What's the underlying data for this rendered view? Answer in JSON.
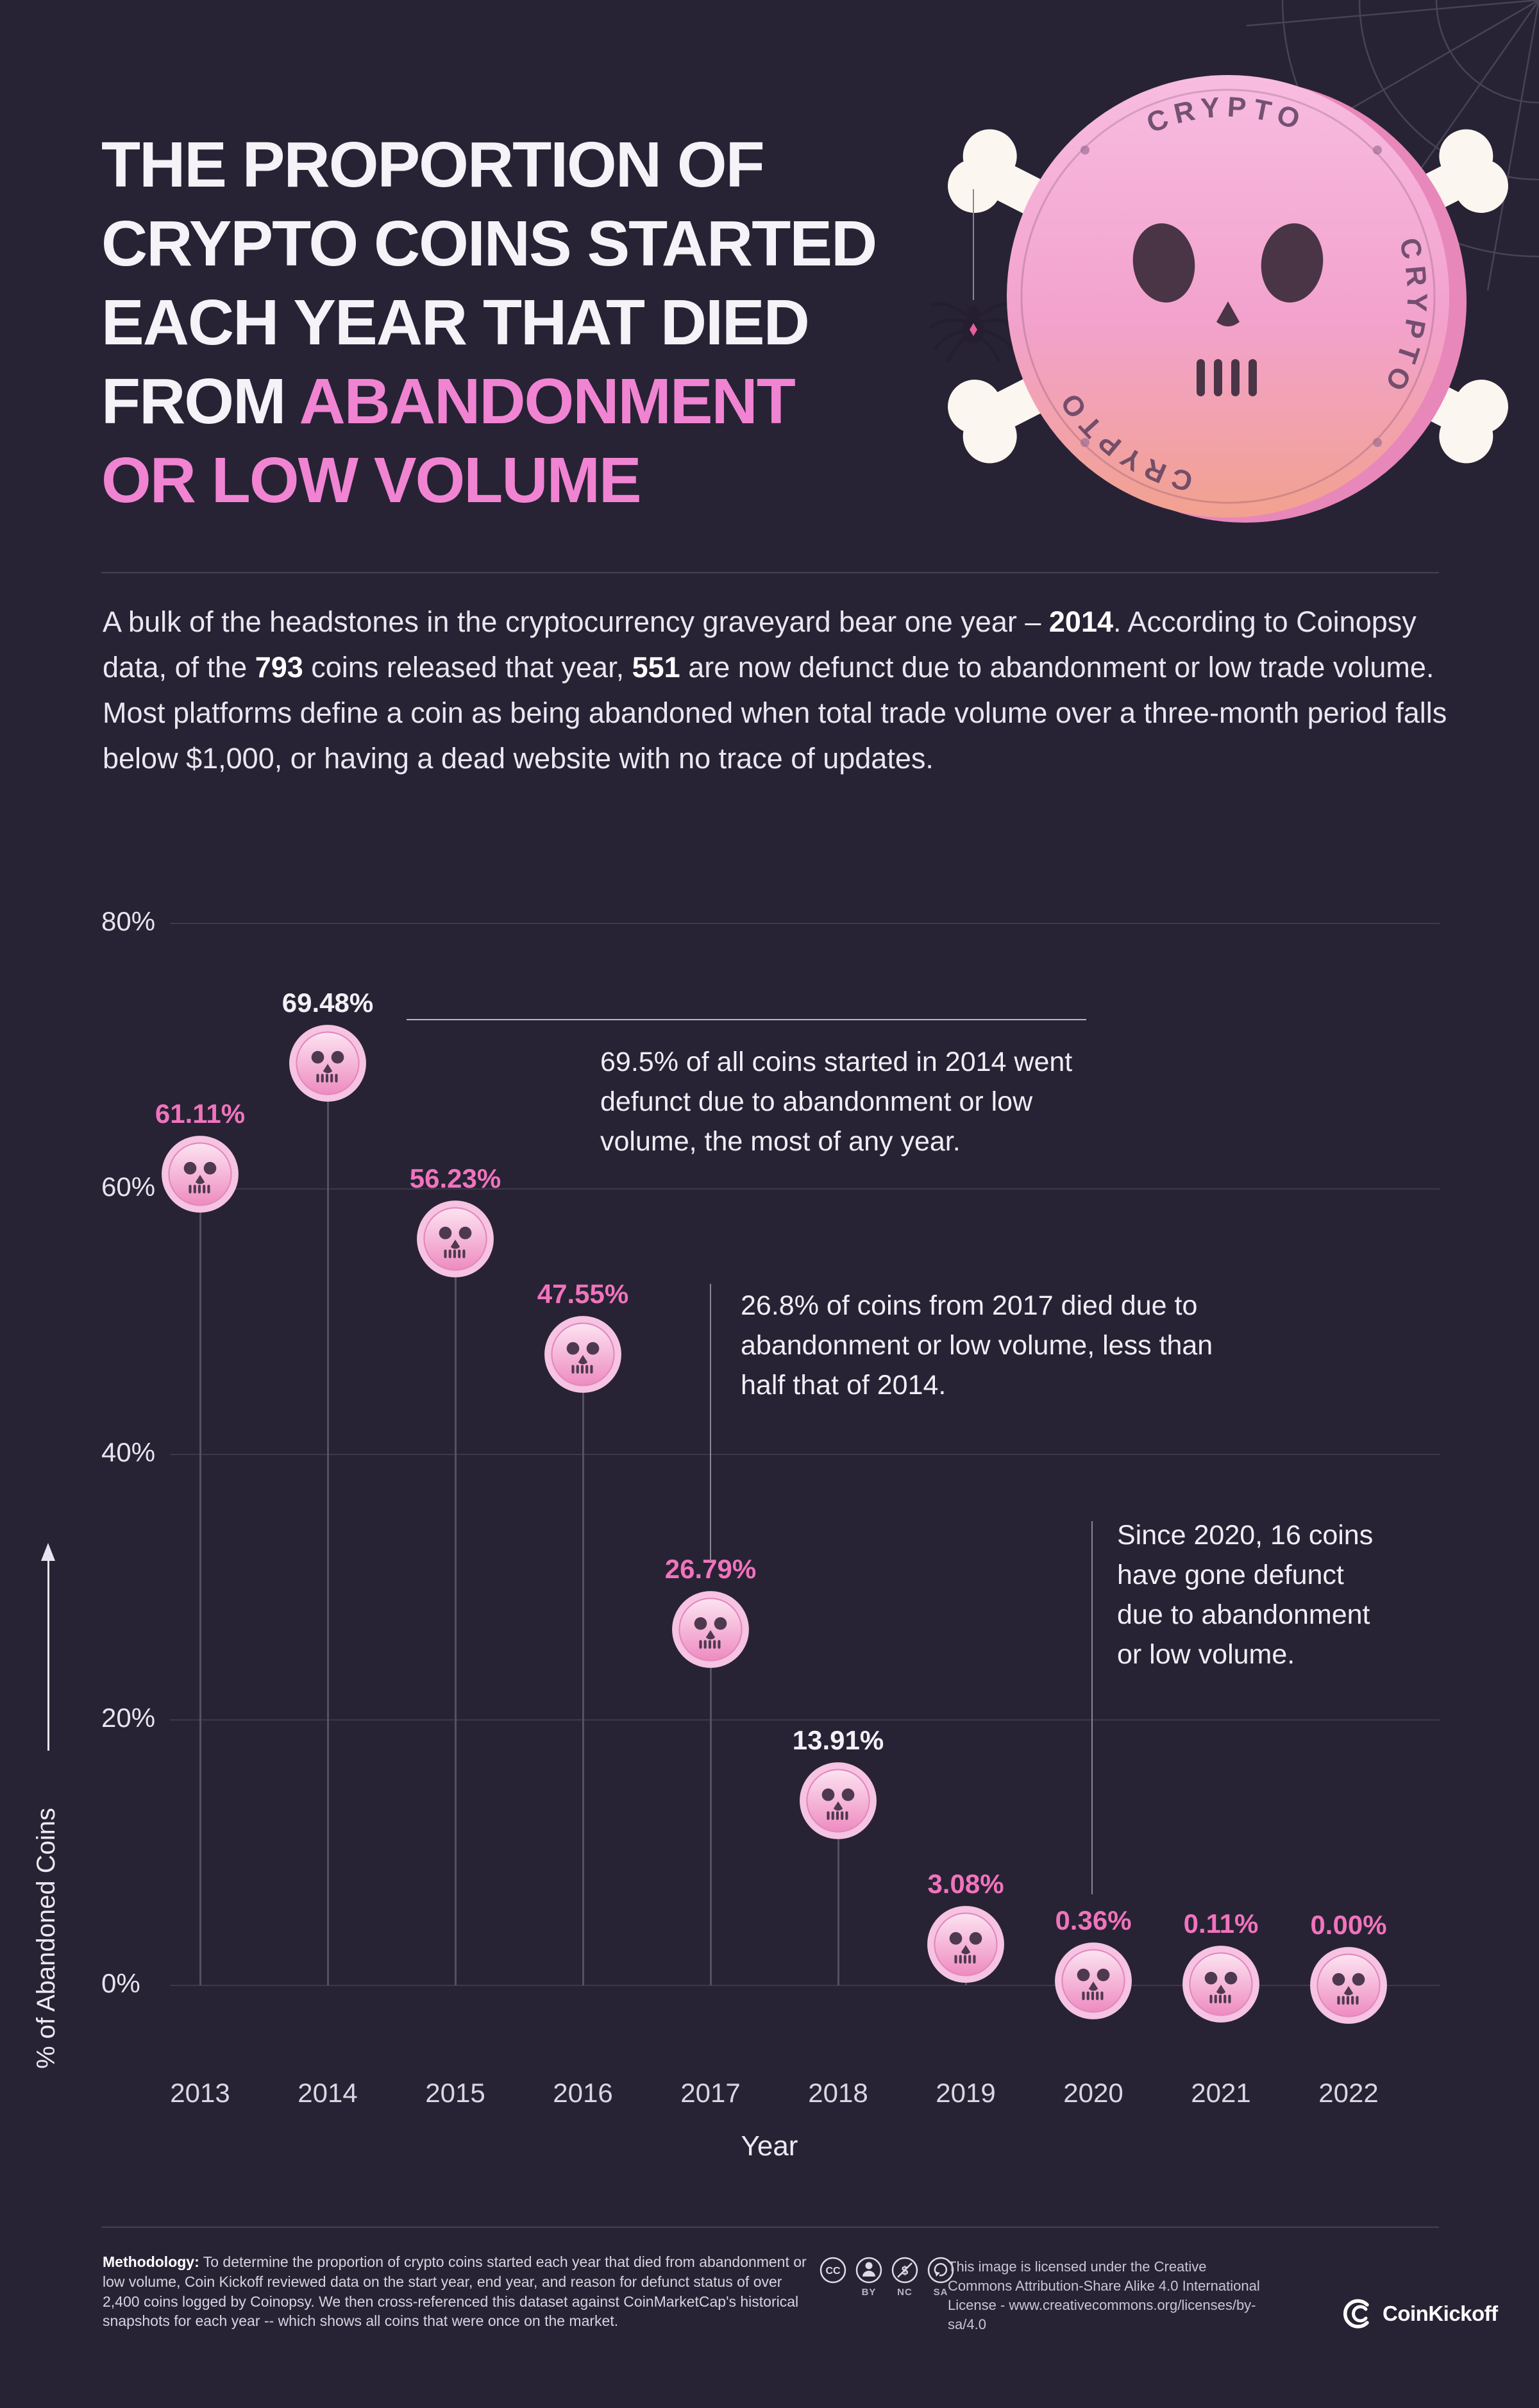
{
  "header": {
    "title": {
      "line1": "THE PROPORTION OF",
      "line2": "CRYPTO COINS STARTED",
      "line3": "EACH YEAR THAT DIED",
      "line4_white": "FROM ",
      "line4_pink": "ABANDONMENT",
      "line5_pink": "OR LOW VOLUME"
    },
    "coin_badge_text": "CRYPTO"
  },
  "intro": {
    "seg1": "A bulk of the headstones in the cryptocurrency graveyard bear one year – ",
    "bold1": "2014",
    "seg2": ". According to Coinopsy data, of the ",
    "bold2": "793",
    "seg3": " coins released that year, ",
    "bold3": "551",
    "seg4": " are now defunct due to abandonment or low trade volume. Most platforms define a coin as being abandoned when total trade volume over a three-month period falls below $1,000, or having a dead website with no trace of updates."
  },
  "chart_data": {
    "type": "scatter",
    "marker": "skull-coin",
    "title": "The proportion of crypto coins started each year that died from abandonment or low volume",
    "categories": [
      "2013",
      "2014",
      "2015",
      "2016",
      "2017",
      "2018",
      "2019",
      "2020",
      "2021",
      "2022"
    ],
    "values": [
      61.11,
      69.48,
      56.23,
      47.55,
      26.79,
      13.91,
      3.08,
      0.36,
      0.11,
      0.0
    ],
    "value_labels": [
      "61.11%",
      "69.48%",
      "56.23%",
      "47.55%",
      "26.79%",
      "13.91%",
      "3.08%",
      "0.36%",
      "0.11%",
      "0.00%"
    ],
    "label_colors": [
      "pink",
      "white",
      "pink",
      "pink",
      "pink",
      "white",
      "pink",
      "pink",
      "pink",
      "pink"
    ],
    "xlabel": "Year",
    "ylabel": "% of Abandoned Coins",
    "ylim": [
      0,
      80
    ],
    "ytick_values": [
      80,
      60,
      40,
      20,
      0
    ],
    "yticks": [
      "80%",
      "60%",
      "40%",
      "20%",
      "0%"
    ],
    "grid": true,
    "legend": false,
    "annotations": [
      {
        "attached_to": "2014",
        "text": "69.5% of all coins started in 2014 went defunct due to abandonment or low volume, the most of any year."
      },
      {
        "attached_to": "2017",
        "text": "26.8% of coins from 2017 died due to abandonment or low volume, less than half that of 2014."
      },
      {
        "attached_to": "2020",
        "text": "Since 2020, 16 coins have gone defunct due to abandonment or low volume."
      }
    ]
  },
  "footer": {
    "methodology_label": "Methodology:",
    "methodology_text": " To determine the proportion of crypto coins started each year that died from abandonment or low volume, Coin Kickoff reviewed data on the start year, end year, and reason for defunct status of over 2,400 coins logged by Coinopsy. We then cross-referenced this dataset against CoinMarketCap's historical snapshots for each year -- which shows all coins that were once on the market.",
    "cc_labels": [
      "",
      "BY",
      "NC",
      "SA"
    ],
    "license_text": "This image is licensed under the Creative Commons Attribution-Share Alike 4.0 International License - www.creativecommons.org/licenses/by-sa/4.0",
    "brand": "CoinKickoff"
  },
  "colors": {
    "background": "#272334",
    "accent_pink": "#f184d2",
    "label_pink": "#f173bd",
    "label_white": "#f3f0f6",
    "coin_pink": "#f29ac9",
    "grid": "rgba(255,255,255,0.10)"
  }
}
